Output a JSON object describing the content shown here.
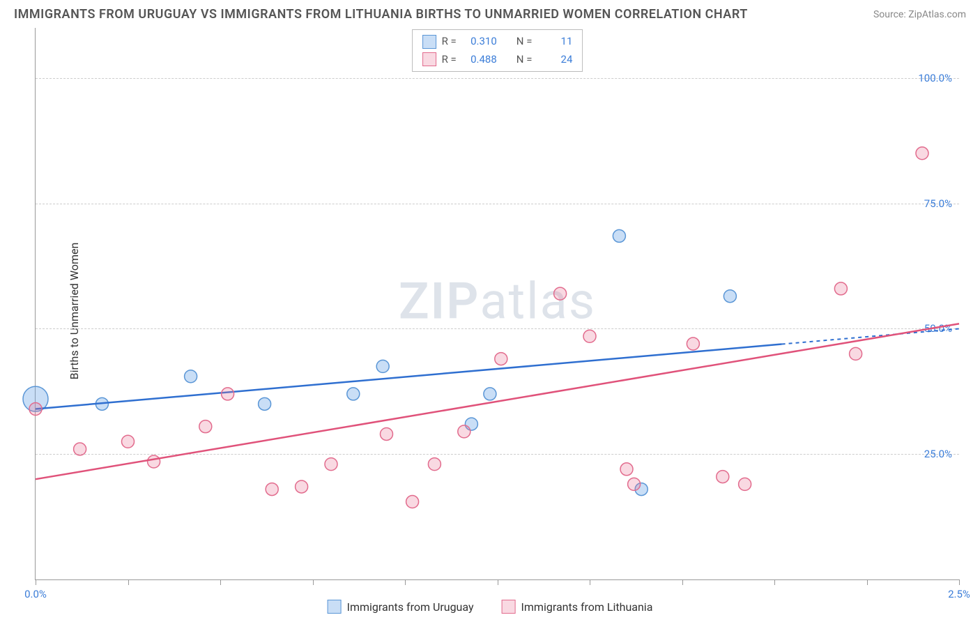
{
  "title": "IMMIGRANTS FROM URUGUAY VS IMMIGRANTS FROM LITHUANIA BIRTHS TO UNMARRIED WOMEN CORRELATION CHART",
  "source": "Source: ZipAtlas.com",
  "y_axis_label": "Births to Unmarried Women",
  "watermark_zip": "ZIP",
  "watermark_atlas": "atlas",
  "chart": {
    "type": "scatter",
    "xlim": [
      0.0,
      2.5
    ],
    "ylim": [
      0.0,
      110.0
    ],
    "x_ticks": [
      0.0,
      0.25,
      0.5,
      0.75,
      1.0,
      1.25,
      1.5,
      1.75,
      2.0,
      2.25,
      2.5
    ],
    "x_tick_labels": {
      "0": "0.0%",
      "2.5": "2.5%"
    },
    "y_gridlines": [
      25.0,
      50.0,
      75.0,
      100.0
    ],
    "y_tick_labels": {
      "25": "25.0%",
      "50": "50.0%",
      "75": "75.0%",
      "100": "100.0%"
    },
    "background_color": "#ffffff",
    "grid_color": "#cccccc",
    "axis_color": "#999999",
    "tick_label_color": "#3b7dd8",
    "marker_radius": 9,
    "marker_radius_large": 18,
    "series": [
      {
        "id": "uruguay",
        "label": "Immigrants from Uruguay",
        "color_fill": "rgba(100,160,230,0.35)",
        "color_stroke": "#5a96d6",
        "line_color": "#2f6fd0",
        "R": "0.310",
        "N": "11",
        "trend": {
          "x1": 0.0,
          "y1": 34.0,
          "x2": 2.5,
          "y2": 50.0,
          "solid_until_x": 2.02
        },
        "points": [
          {
            "x": 0.0,
            "y": 36.0,
            "r": 18
          },
          {
            "x": 0.18,
            "y": 35.0
          },
          {
            "x": 0.42,
            "y": 40.5
          },
          {
            "x": 0.62,
            "y": 35.0
          },
          {
            "x": 0.86,
            "y": 37.0
          },
          {
            "x": 0.94,
            "y": 42.5
          },
          {
            "x": 1.18,
            "y": 31.0
          },
          {
            "x": 1.23,
            "y": 37.0
          },
          {
            "x": 1.58,
            "y": 68.5
          },
          {
            "x": 1.64,
            "y": 18.0
          },
          {
            "x": 1.88,
            "y": 56.5
          }
        ]
      },
      {
        "id": "lithuania",
        "label": "Immigrants from Lithuania",
        "color_fill": "rgba(235,120,150,0.28)",
        "color_stroke": "#e26b8d",
        "line_color": "#e0527a",
        "R": "0.488",
        "N": "24",
        "trend": {
          "x1": 0.0,
          "y1": 20.0,
          "x2": 2.5,
          "y2": 51.0,
          "solid_until_x": 2.5
        },
        "points": [
          {
            "x": 0.0,
            "y": 34.0
          },
          {
            "x": 0.12,
            "y": 26.0
          },
          {
            "x": 0.25,
            "y": 27.5
          },
          {
            "x": 0.32,
            "y": 23.5
          },
          {
            "x": 0.46,
            "y": 30.5
          },
          {
            "x": 0.52,
            "y": 37.0
          },
          {
            "x": 0.64,
            "y": 18.0
          },
          {
            "x": 0.72,
            "y": 18.5
          },
          {
            "x": 0.8,
            "y": 23.0
          },
          {
            "x": 0.95,
            "y": 29.0
          },
          {
            "x": 1.02,
            "y": 15.5
          },
          {
            "x": 1.08,
            "y": 23.0
          },
          {
            "x": 1.16,
            "y": 29.5
          },
          {
            "x": 1.26,
            "y": 44.0
          },
          {
            "x": 1.42,
            "y": 57.0
          },
          {
            "x": 1.5,
            "y": 48.5
          },
          {
            "x": 1.6,
            "y": 22.0
          },
          {
            "x": 1.62,
            "y": 19.0
          },
          {
            "x": 1.78,
            "y": 47.0
          },
          {
            "x": 1.86,
            "y": 20.5
          },
          {
            "x": 1.92,
            "y": 19.0
          },
          {
            "x": 2.18,
            "y": 58.0
          },
          {
            "x": 2.22,
            "y": 45.0
          },
          {
            "x": 2.4,
            "y": 85.0
          }
        ]
      }
    ]
  },
  "legend_top": {
    "R_label": "R  =",
    "N_label": "N  ="
  }
}
